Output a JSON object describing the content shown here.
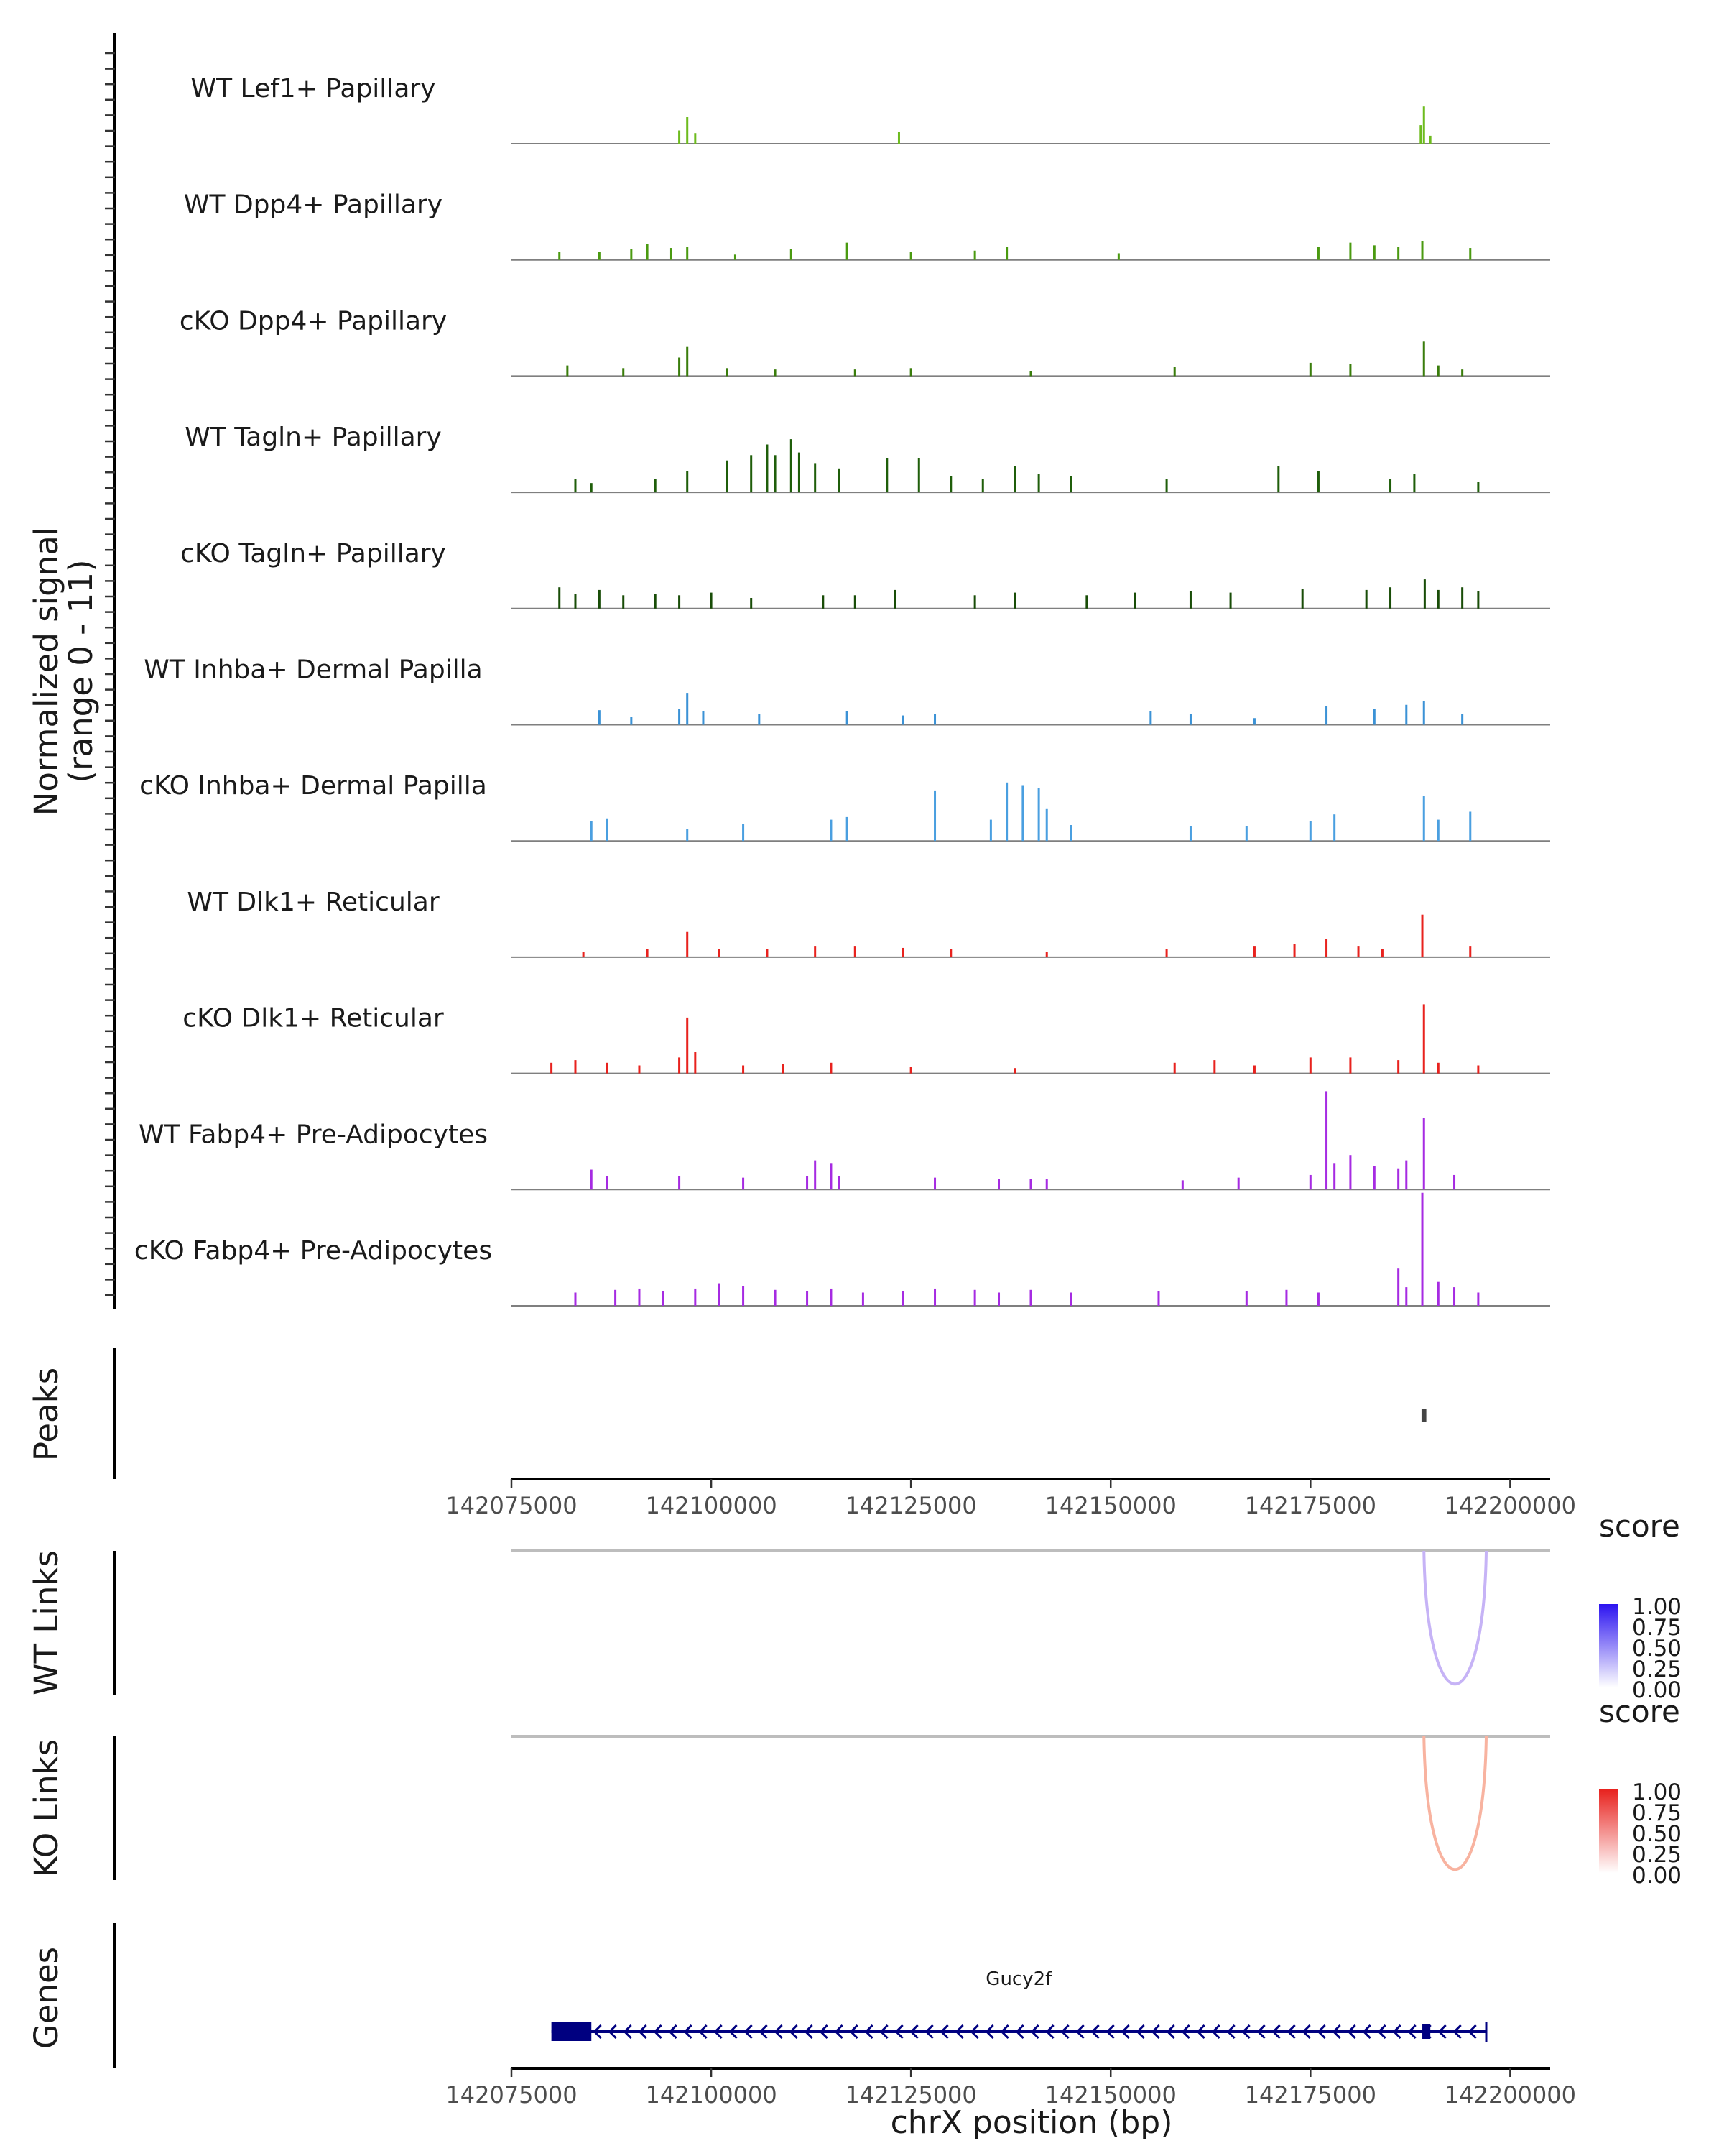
{
  "chart_data": {
    "type": "coverage",
    "region": {
      "chrom": "chrX",
      "start": 142075000,
      "end": 142205000
    },
    "coverage": {
      "ylabel_line1": "Normalized signal",
      "ylabel_line2": "(range 0 - 11)",
      "ylim": [
        0,
        11
      ],
      "tracks": [
        {
          "name": "WT Lef1+ Papillary",
          "color": "#6dbb1e",
          "bins": [
            [
              142097000,
              2.0
            ],
            [
              142096000,
              1.0
            ],
            [
              142098000,
              0.8
            ],
            [
              142123500,
              0.9
            ],
            [
              142189200,
              2.8
            ],
            [
              142188800,
              1.4
            ],
            [
              142190000,
              0.6
            ]
          ]
        },
        {
          "name": "WT Dpp4+ Papillary",
          "color": "#4a9a10",
          "bins": [
            [
              142081000,
              0.6
            ],
            [
              142086000,
              0.6
            ],
            [
              142090000,
              0.8
            ],
            [
              142092000,
              1.2
            ],
            [
              142095000,
              0.9
            ],
            [
              142097000,
              1.0
            ],
            [
              142103000,
              0.4
            ],
            [
              142110000,
              0.8
            ],
            [
              142117000,
              1.3
            ],
            [
              142125000,
              0.6
            ],
            [
              142133000,
              0.7
            ],
            [
              142137000,
              1.0
            ],
            [
              142151000,
              0.5
            ],
            [
              142176000,
              1.0
            ],
            [
              142180000,
              1.3
            ],
            [
              142183000,
              1.1
            ],
            [
              142186000,
              1.0
            ],
            [
              142189000,
              1.4
            ],
            [
              142195000,
              0.9
            ]
          ]
        },
        {
          "name": "cKO Dpp4+ Papillary",
          "color": "#3a7d0c",
          "bins": [
            [
              142082000,
              0.8
            ],
            [
              142089000,
              0.6
            ],
            [
              142097000,
              2.2
            ],
            [
              142096000,
              1.4
            ],
            [
              142102000,
              0.6
            ],
            [
              142108000,
              0.5
            ],
            [
              142118000,
              0.5
            ],
            [
              142125000,
              0.6
            ],
            [
              142140000,
              0.4
            ],
            [
              142158000,
              0.7
            ],
            [
              142175000,
              1.0
            ],
            [
              142180000,
              0.9
            ],
            [
              142189200,
              2.6
            ],
            [
              142191000,
              0.8
            ],
            [
              142194000,
              0.5
            ]
          ]
        },
        {
          "name": "WT Tagln+ Papillary",
          "color": "#1f5e0a",
          "bins": [
            [
              142083000,
              1.0
            ],
            [
              142085000,
              0.7
            ],
            [
              142093000,
              1.0
            ],
            [
              142097000,
              1.6
            ],
            [
              142102000,
              2.4
            ],
            [
              142105000,
              2.8
            ],
            [
              142107000,
              3.6
            ],
            [
              142108000,
              2.8
            ],
            [
              142110000,
              4.0
            ],
            [
              142111000,
              3.0
            ],
            [
              142113000,
              2.2
            ],
            [
              142116000,
              1.8
            ],
            [
              142122000,
              2.6
            ],
            [
              142126000,
              2.6
            ],
            [
              142130000,
              1.2
            ],
            [
              142134000,
              1.0
            ],
            [
              142138000,
              2.0
            ],
            [
              142141000,
              1.4
            ],
            [
              142145000,
              1.2
            ],
            [
              142157000,
              1.0
            ],
            [
              142171000,
              2.0
            ],
            [
              142176000,
              1.6
            ],
            [
              142185000,
              1.0
            ],
            [
              142188000,
              1.4
            ],
            [
              142196000,
              0.8
            ]
          ]
        },
        {
          "name": "cKO Tagln+ Papillary",
          "color": "#194d08",
          "bins": [
            [
              142081000,
              1.6
            ],
            [
              142083000,
              1.1
            ],
            [
              142086000,
              1.4
            ],
            [
              142089000,
              1.0
            ],
            [
              142093000,
              1.1
            ],
            [
              142096000,
              1.0
            ],
            [
              142100000,
              1.2
            ],
            [
              142105000,
              0.8
            ],
            [
              142114000,
              1.0
            ],
            [
              142118000,
              1.0
            ],
            [
              142123000,
              1.4
            ],
            [
              142133000,
              1.0
            ],
            [
              142138000,
              1.2
            ],
            [
              142147000,
              1.0
            ],
            [
              142153000,
              1.2
            ],
            [
              142160000,
              1.3
            ],
            [
              142165000,
              1.2
            ],
            [
              142174000,
              1.5
            ],
            [
              142182000,
              1.4
            ],
            [
              142185000,
              1.6
            ],
            [
              142189300,
              2.2
            ],
            [
              142191000,
              1.4
            ],
            [
              142194000,
              1.6
            ],
            [
              142196000,
              1.3
            ]
          ]
        },
        {
          "name": "WT Inhba+ Dermal Papilla",
          "color": "#3b92d6",
          "bins": [
            [
              142086000,
              1.1
            ],
            [
              142090000,
              0.6
            ],
            [
              142096000,
              1.2
            ],
            [
              142097000,
              2.4
            ],
            [
              142099000,
              1.0
            ],
            [
              142106000,
              0.8
            ],
            [
              142117000,
              1.0
            ],
            [
              142124000,
              0.7
            ],
            [
              142128000,
              0.8
            ],
            [
              142155000,
              1.0
            ],
            [
              142160000,
              0.8
            ],
            [
              142168000,
              0.5
            ],
            [
              142177000,
              1.4
            ],
            [
              142183000,
              1.2
            ],
            [
              142187000,
              1.5
            ],
            [
              142189200,
              1.8
            ],
            [
              142194000,
              0.8
            ]
          ]
        },
        {
          "name": "cKO Inhba+ Dermal Papilla",
          "color": "#4a9fe0",
          "bins": [
            [
              142085000,
              1.5
            ],
            [
              142087000,
              1.7
            ],
            [
              142097000,
              0.9
            ],
            [
              142104000,
              1.3
            ],
            [
              142115000,
              1.6
            ],
            [
              142117000,
              1.8
            ],
            [
              142128000,
              3.8
            ],
            [
              142135000,
              1.6
            ],
            [
              142137000,
              4.4
            ],
            [
              142139000,
              4.2
            ],
            [
              142141000,
              4.0
            ],
            [
              142142000,
              2.4
            ],
            [
              142145000,
              1.2
            ],
            [
              142160000,
              1.1
            ],
            [
              142167000,
              1.1
            ],
            [
              142175000,
              1.5
            ],
            [
              142178000,
              2.0
            ],
            [
              142189200,
              3.4
            ],
            [
              142191000,
              1.6
            ],
            [
              142195000,
              2.2
            ]
          ]
        },
        {
          "name": "WT Dlk1+ Reticular",
          "color": "#e8221e",
          "bins": [
            [
              142084000,
              0.4
            ],
            [
              142092000,
              0.6
            ],
            [
              142097000,
              1.9
            ],
            [
              142101000,
              0.6
            ],
            [
              142107000,
              0.6
            ],
            [
              142113000,
              0.8
            ],
            [
              142118000,
              0.8
            ],
            [
              142124000,
              0.7
            ],
            [
              142130000,
              0.6
            ],
            [
              142142000,
              0.4
            ],
            [
              142157000,
              0.6
            ],
            [
              142168000,
              0.8
            ],
            [
              142173000,
              1.0
            ],
            [
              142177000,
              1.4
            ],
            [
              142181000,
              0.8
            ],
            [
              142184000,
              0.6
            ],
            [
              142189000,
              3.2
            ],
            [
              142195000,
              0.8
            ]
          ]
        },
        {
          "name": "cKO Dlk1+ Reticular",
          "color": "#e8221e",
          "bins": [
            [
              142080000,
              0.8
            ],
            [
              142083000,
              1.0
            ],
            [
              142087000,
              0.8
            ],
            [
              142091000,
              0.6
            ],
            [
              142096000,
              1.2
            ],
            [
              142097000,
              4.2
            ],
            [
              142098000,
              1.6
            ],
            [
              142104000,
              0.6
            ],
            [
              142109000,
              0.7
            ],
            [
              142115000,
              0.8
            ],
            [
              142125000,
              0.5
            ],
            [
              142138000,
              0.4
            ],
            [
              142158000,
              0.8
            ],
            [
              142163000,
              1.0
            ],
            [
              142168000,
              0.6
            ],
            [
              142175000,
              1.2
            ],
            [
              142180000,
              1.2
            ],
            [
              142186000,
              1.0
            ],
            [
              142189200,
              5.2
            ],
            [
              142191000,
              0.8
            ],
            [
              142196000,
              0.6
            ]
          ]
        },
        {
          "name": "WT Fabp4+ Pre-Adipocytes",
          "color": "#a62be2",
          "bins": [
            [
              142085000,
              1.5
            ],
            [
              142087000,
              1.0
            ],
            [
              142096000,
              1.0
            ],
            [
              142104000,
              0.9
            ],
            [
              142112000,
              1.0
            ],
            [
              142113000,
              2.2
            ],
            [
              142115000,
              2.0
            ],
            [
              142116000,
              1.0
            ],
            [
              142128000,
              0.9
            ],
            [
              142136000,
              0.8
            ],
            [
              142140000,
              0.8
            ],
            [
              142142000,
              0.8
            ],
            [
              142159000,
              0.7
            ],
            [
              142166000,
              0.9
            ],
            [
              142175000,
              1.1
            ],
            [
              142177000,
              7.4
            ],
            [
              142178000,
              2.0
            ],
            [
              142180000,
              2.6
            ],
            [
              142183000,
              1.8
            ],
            [
              142186000,
              1.6
            ],
            [
              142187000,
              2.2
            ],
            [
              142189200,
              5.4
            ],
            [
              142193000,
              1.1
            ]
          ]
        },
        {
          "name": "cKO Fabp4+ Pre-Adipocytes",
          "color": "#a62be2",
          "bins": [
            [
              142083000,
              1.0
            ],
            [
              142088000,
              1.2
            ],
            [
              142091000,
              1.3
            ],
            [
              142094000,
              1.1
            ],
            [
              142098000,
              1.3
            ],
            [
              142101000,
              1.7
            ],
            [
              142104000,
              1.5
            ],
            [
              142108000,
              1.2
            ],
            [
              142112000,
              1.1
            ],
            [
              142115000,
              1.3
            ],
            [
              142119000,
              1.0
            ],
            [
              142124000,
              1.1
            ],
            [
              142128000,
              1.3
            ],
            [
              142133000,
              1.2
            ],
            [
              142136000,
              1.0
            ],
            [
              142140000,
              1.2
            ],
            [
              142145000,
              1.0
            ],
            [
              142156000,
              1.1
            ],
            [
              142167000,
              1.1
            ],
            [
              142172000,
              1.2
            ],
            [
              142176000,
              1.0
            ],
            [
              142186000,
              2.8
            ],
            [
              142187000,
              1.4
            ],
            [
              142189000,
              8.5
            ],
            [
              142191000,
              1.8
            ],
            [
              142193000,
              1.4
            ],
            [
              142196000,
              1.0
            ]
          ]
        }
      ]
    },
    "peaks": {
      "label": "Peaks",
      "regions": [
        [
          142188900,
          142189500
        ]
      ]
    },
    "axis_ticks": [
      "142075000",
      "142100000",
      "142125000",
      "142150000",
      "142175000",
      "142200000"
    ],
    "axis_tick_values": [
      142075000,
      142100000,
      142125000,
      142150000,
      142175000,
      142200000
    ],
    "xlabel": "chrX position (bp)",
    "links": [
      {
        "label": "WT Links",
        "color": "#c6b3f6",
        "arcs": [
          {
            "start": 142189200,
            "end": 142197000,
            "score": 0.25
          }
        ],
        "legend": {
          "title": "score",
          "ticks": [
            "1.00",
            "0.75",
            "0.50",
            "0.25",
            "0.00"
          ],
          "color_high": "#2c14f0",
          "color_low": "#ffffff"
        }
      },
      {
        "label": "KO Links",
        "color": "#f8b3a0",
        "arcs": [
          {
            "start": 142189200,
            "end": 142197000,
            "score": 0.25
          }
        ],
        "legend": {
          "title": "score",
          "ticks": [
            "1.00",
            "0.75",
            "0.50",
            "0.25",
            "0.00"
          ],
          "color_high": "#e8221e",
          "color_low": "#ffffff"
        }
      }
    ],
    "genes": {
      "label": "Genes",
      "color": "#000080",
      "items": [
        {
          "name": "Gucy2f",
          "start": 142080000,
          "end": 142197000,
          "strand": "-",
          "exons": [
            [
              142080000,
              142085000
            ],
            [
              142189000,
              142190000
            ]
          ]
        }
      ]
    }
  }
}
